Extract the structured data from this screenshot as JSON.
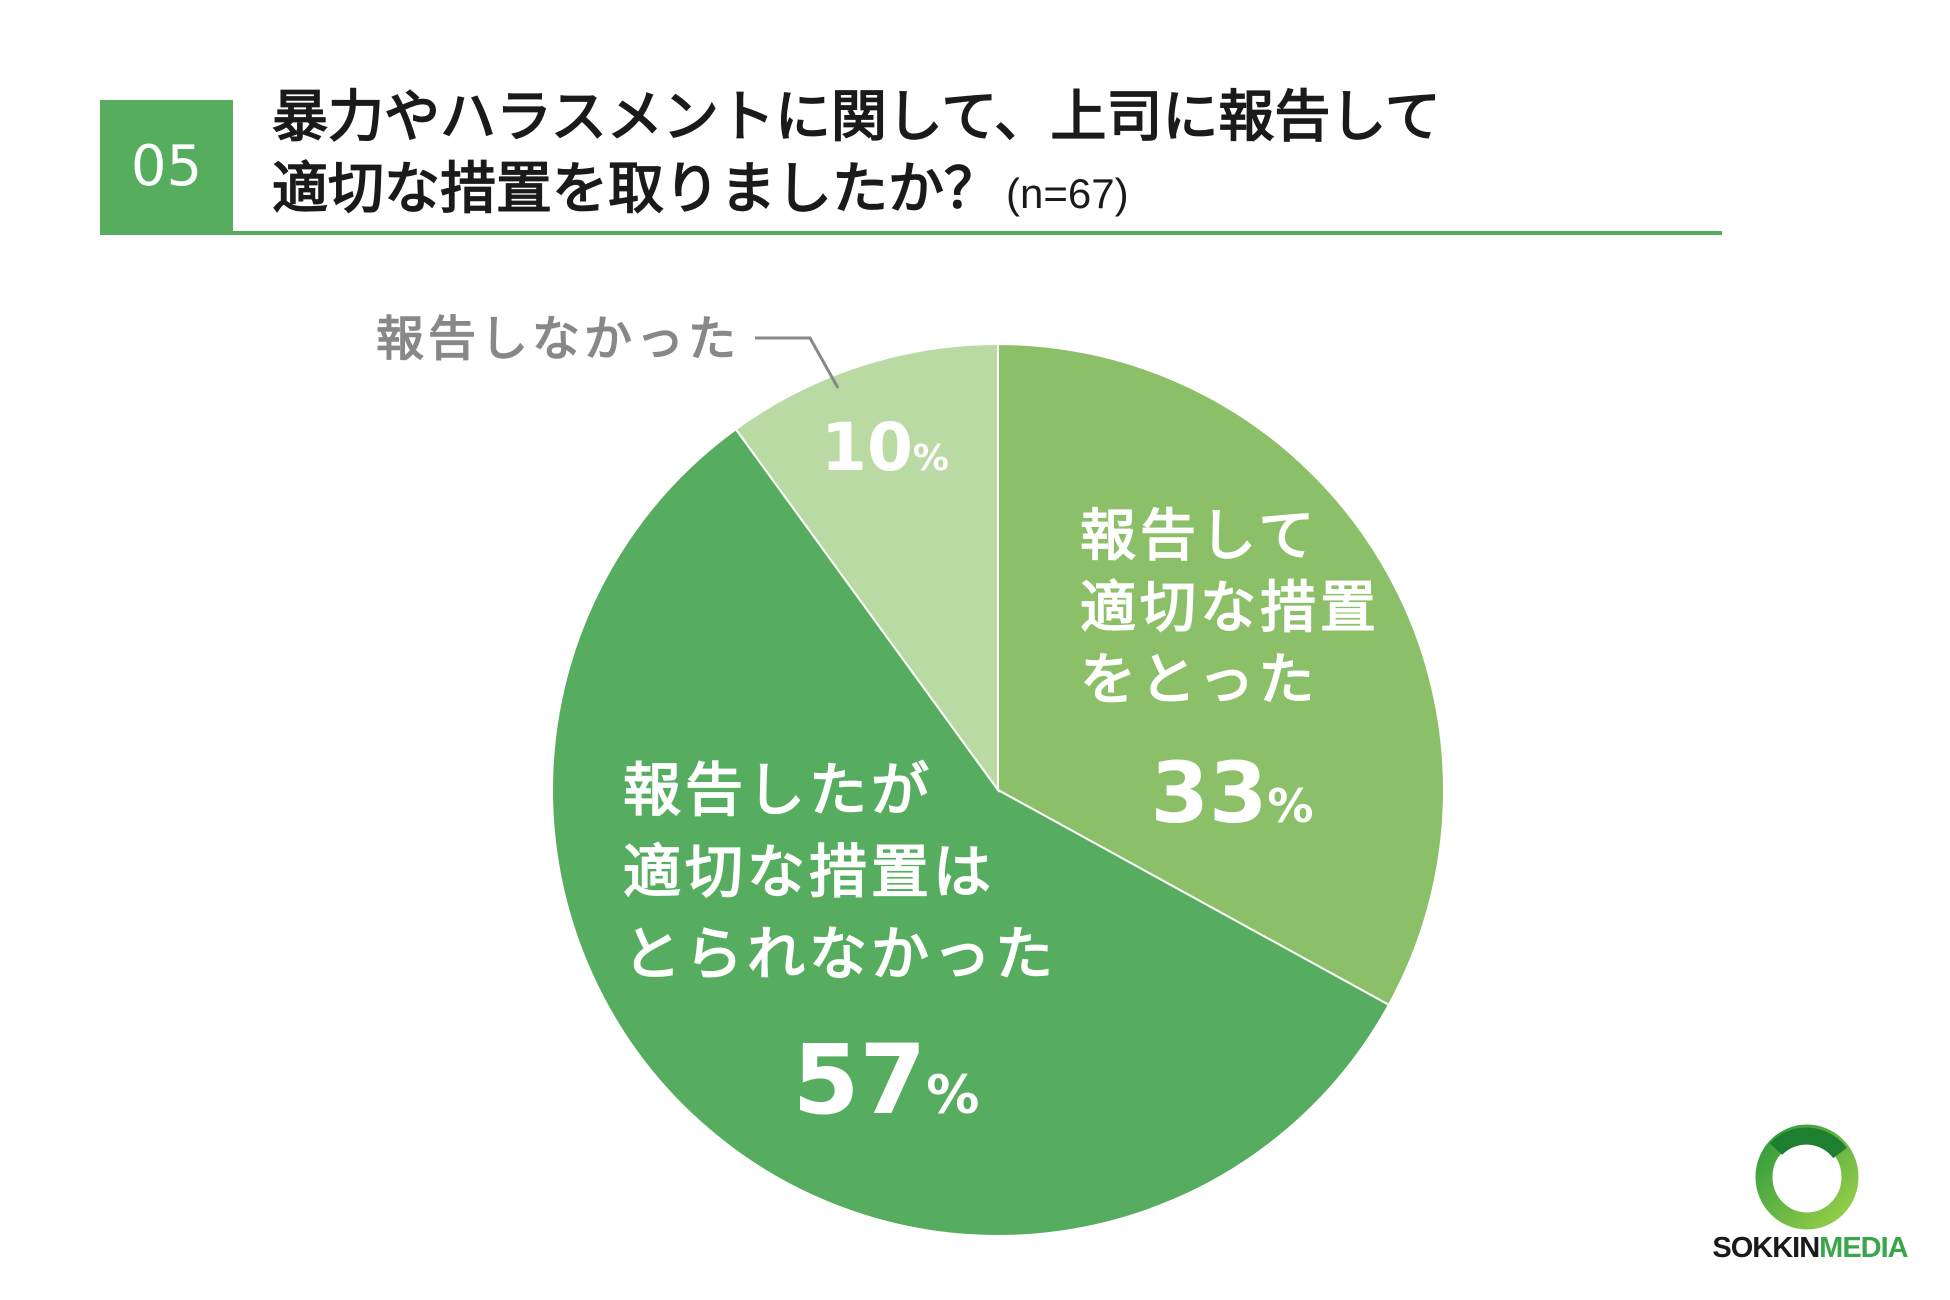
{
  "question_number": "05",
  "title": {
    "line1": "暴力やハラスメントに関して、上司に報告して",
    "line2": "適切な措置を取りましたか？",
    "sample_size": "(n=67)"
  },
  "colors": {
    "accent": "#56ad5e",
    "slice_reported_action": "#8cc068",
    "slice_reported_no_action": "#57ad5f",
    "slice_not_reported": "#badaa3",
    "label_light": "#ffffff",
    "label_outside": "#888888"
  },
  "chart_data": {
    "type": "pie",
    "title": "暴力やハラスメントに関して、上司に報告して適切な措置を取りましたか？",
    "start": "12 o'clock, clockwise",
    "slices": [
      {
        "label": [
          "報告して",
          "適切な措置",
          "をとった"
        ],
        "value": 33,
        "display": "33",
        "unit": "%"
      },
      {
        "label": [
          "報告したが",
          "適切な措置は",
          "とられなかった"
        ],
        "value": 57,
        "display": "57",
        "unit": "%"
      },
      {
        "label": [
          "報告しなかった"
        ],
        "value": 10,
        "display": "10",
        "unit": "%"
      }
    ]
  },
  "logo": {
    "text_part1": "SOKKIN",
    "text_part2": "MEDIA"
  }
}
